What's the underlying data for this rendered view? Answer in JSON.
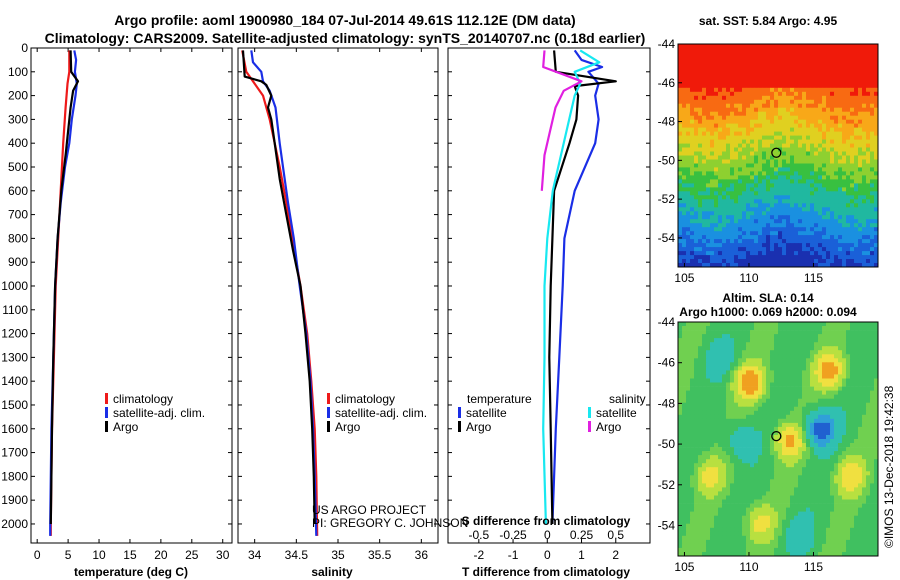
{
  "header": {
    "title_line1": "Argo profile: aoml 1900980_184 07-Jul-2014 49.61S 112.12E (DM data)",
    "title_line2": "Climatology: CARS2009. Satellite-adjusted climatology: synTS_20140707.nc (0.18d earlier)"
  },
  "colors": {
    "climatology": "#ee1a1a",
    "satellite": "#1a2ee6",
    "argo": "#000000",
    "argo_salinity": "#e020e0",
    "satellite_salinity": "#18e8f0"
  },
  "credits": {
    "project": "US ARGO PROJECT",
    "pi": "PI: GREGORY C. JOHNSON",
    "stamp": "©IMOS 13-Dec-2018 19:42:38"
  },
  "chart_data": [
    {
      "type": "line",
      "id": "temperature",
      "xlabel": "temperature (deg C)",
      "ylabel": "",
      "xlim": [
        -1,
        31.5
      ],
      "ylim": [
        2080,
        0
      ],
      "xticks": [
        0,
        5,
        10,
        15,
        20,
        25,
        30
      ],
      "yticks": [
        0,
        100,
        200,
        300,
        400,
        500,
        600,
        700,
        800,
        900,
        1000,
        1100,
        1200,
        1300,
        1400,
        1500,
        1600,
        1700,
        1800,
        1900,
        2000
      ],
      "legend": [
        "climatology",
        "satellite-adj. clim.",
        "Argo"
      ],
      "series": [
        {
          "name": "climatology",
          "color": "#ee1a1a",
          "points": [
            [
              5.2,
              10
            ],
            [
              5.2,
              100
            ],
            [
              4.9,
              150
            ],
            [
              4.6,
              250
            ],
            [
              4.2,
              400
            ],
            [
              3.8,
              600
            ],
            [
              3.4,
              800
            ],
            [
              3.0,
              1000
            ],
            [
              2.7,
              1300
            ],
            [
              2.4,
              1600
            ],
            [
              2.2,
              2000
            ],
            [
              2.2,
              2050
            ]
          ]
        },
        {
          "name": "satellite-adj. clim.",
          "color": "#1a2ee6",
          "points": [
            [
              6.0,
              10
            ],
            [
              6.3,
              50
            ],
            [
              6.1,
              100
            ],
            [
              6.4,
              150
            ],
            [
              6.2,
              200
            ],
            [
              5.6,
              300
            ],
            [
              5.2,
              400
            ],
            [
              4.5,
              500
            ],
            [
              3.8,
              650
            ],
            [
              3.3,
              800
            ],
            [
              2.9,
              1000
            ],
            [
              2.6,
              1300
            ],
            [
              2.3,
              1600
            ],
            [
              2.1,
              2000
            ],
            [
              2.1,
              2050
            ]
          ]
        },
        {
          "name": "Argo",
          "color": "#000000",
          "points": [
            [
              5.4,
              10
            ],
            [
              5.5,
              100
            ],
            [
              6.6,
              140
            ],
            [
              5.8,
              180
            ],
            [
              5.4,
              250
            ],
            [
              5.0,
              350
            ],
            [
              4.6,
              450
            ],
            [
              3.9,
              600
            ],
            [
              3.3,
              800
            ],
            [
              2.9,
              1000
            ],
            [
              2.6,
              1300
            ],
            [
              2.4,
              1600
            ],
            [
              2.2,
              2000
            ]
          ]
        }
      ]
    },
    {
      "type": "line",
      "id": "salinity",
      "xlabel": "salinity",
      "ylabel": "",
      "xlim": [
        33.8,
        36.2
      ],
      "ylim": [
        2080,
        0
      ],
      "xticks": [
        34,
        34.5,
        35,
        35.5,
        36
      ],
      "yticks": [
        0,
        100,
        200,
        300,
        400,
        500,
        600,
        700,
        800,
        900,
        1000,
        1100,
        1200,
        1300,
        1400,
        1500,
        1600,
        1700,
        1800,
        1900,
        2000
      ],
      "legend": [
        "climatology",
        "satellite-adj. clim.",
        "Argo"
      ],
      "series": [
        {
          "name": "climatology",
          "color": "#ee1a1a",
          "points": [
            [
              33.85,
              10
            ],
            [
              33.9,
              100
            ],
            [
              34.0,
              150
            ],
            [
              34.1,
              200
            ],
            [
              34.18,
              300
            ],
            [
              34.24,
              400
            ],
            [
              34.3,
              500
            ],
            [
              34.38,
              650
            ],
            [
              34.45,
              800
            ],
            [
              34.55,
              1000
            ],
            [
              34.63,
              1200
            ],
            [
              34.68,
              1400
            ],
            [
              34.72,
              1600
            ],
            [
              34.74,
              1800
            ],
            [
              34.75,
              2050
            ]
          ]
        },
        {
          "name": "satellite-adj. clim.",
          "color": "#1a2ee6",
          "points": [
            [
              33.96,
              10
            ],
            [
              33.98,
              60
            ],
            [
              34.08,
              100
            ],
            [
              34.1,
              140
            ],
            [
              34.18,
              180
            ],
            [
              34.25,
              250
            ],
            [
              34.3,
              400
            ],
            [
              34.34,
              500
            ],
            [
              34.4,
              650
            ],
            [
              34.47,
              800
            ],
            [
              34.54,
              1000
            ],
            [
              34.62,
              1200
            ],
            [
              34.67,
              1400
            ],
            [
              34.7,
              1600
            ],
            [
              34.72,
              1800
            ],
            [
              34.74,
              2050
            ]
          ]
        },
        {
          "name": "Argo",
          "color": "#000000",
          "points": [
            [
              33.86,
              10
            ],
            [
              33.88,
              120
            ],
            [
              34.08,
              140
            ],
            [
              34.14,
              155
            ],
            [
              34.2,
              200
            ],
            [
              34.16,
              250
            ],
            [
              34.2,
              300
            ],
            [
              34.24,
              400
            ],
            [
              34.3,
              550
            ],
            [
              34.38,
              700
            ],
            [
              34.46,
              850
            ],
            [
              34.55,
              1000
            ],
            [
              34.61,
              1200
            ],
            [
              34.66,
              1400
            ],
            [
              34.69,
              1600
            ],
            [
              34.71,
              1800
            ],
            [
              34.72,
              2000
            ]
          ]
        }
      ]
    },
    {
      "type": "line",
      "id": "difference",
      "xlabel": "T difference from climatology",
      "xlabel_top": "S difference from climatology",
      "xlim": [
        -2.9,
        3.0
      ],
      "ylim": [
        2080,
        0
      ],
      "xticks": [
        -2,
        -1,
        0,
        1,
        2
      ],
      "sticks": [
        "-0.5",
        "-0.25",
        "0",
        "0.25",
        "0.5"
      ],
      "yticks": [
        0,
        100,
        200,
        300,
        400,
        500,
        600,
        700,
        800,
        900,
        1000,
        1100,
        1200,
        1300,
        1400,
        1500,
        1600,
        1700,
        1800,
        1900,
        2000
      ],
      "legend_temperature_title": "temperature",
      "legend_salinity_title": "salinity",
      "legend": [
        "satellite",
        "Argo",
        "satellite",
        "Argo"
      ],
      "series": [
        {
          "name": "temperature satellite",
          "color": "#1a2ee6",
          "points": [
            [
              0.8,
              10
            ],
            [
              1.0,
              50
            ],
            [
              1.6,
              80
            ],
            [
              1.2,
              100
            ],
            [
              1.5,
              150
            ],
            [
              1.4,
              200
            ],
            [
              1.5,
              300
            ],
            [
              1.4,
              400
            ],
            [
              0.8,
              600
            ],
            [
              0.5,
              800
            ],
            [
              0.45,
              1000
            ],
            [
              0.35,
              1300
            ],
            [
              0.25,
              1600
            ],
            [
              0.15,
              2000
            ]
          ]
        },
        {
          "name": "temperature Argo",
          "color": "#000000",
          "points": [
            [
              0.2,
              10
            ],
            [
              0.25,
              100
            ],
            [
              2.0,
              140
            ],
            [
              0.8,
              160
            ],
            [
              0.9,
              200
            ],
            [
              0.85,
              300
            ],
            [
              0.65,
              400
            ],
            [
              0.2,
              600
            ],
            [
              0.15,
              800
            ],
            [
              0.1,
              1000
            ],
            [
              0.06,
              1300
            ],
            [
              0.1,
              1600
            ],
            [
              0.15,
              2000
            ]
          ]
        },
        {
          "name": "salinity satellite",
          "color": "#18e8f0",
          "points": [
            [
              0.24,
              10
            ],
            [
              0.38,
              60
            ],
            [
              0.2,
              100
            ],
            [
              0.24,
              150
            ],
            [
              0.2,
              200
            ],
            [
              0.16,
              300
            ],
            [
              0.12,
              400
            ],
            [
              0.04,
              600
            ],
            [
              0.0,
              800
            ],
            [
              -0.02,
              1000
            ],
            [
              -0.02,
              1300
            ],
            [
              -0.03,
              1600
            ],
            [
              -0.01,
              2000
            ]
          ]
        },
        {
          "name": "salinity Argo",
          "color": "#e020e0",
          "points": [
            [
              -0.02,
              10
            ],
            [
              -0.03,
              80
            ],
            [
              0.25,
              140
            ],
            [
              0.12,
              180
            ],
            [
              0.06,
              250
            ],
            [
              0.02,
              350
            ],
            [
              -0.02,
              450
            ],
            [
              -0.04,
              600
            ]
          ]
        }
      ]
    },
    {
      "type": "heatmap",
      "id": "sst_map",
      "title": "sat. SST: 5.84 Argo: 4.95",
      "xlim": [
        104.5,
        120
      ],
      "ylim": [
        -55.5,
        -44
      ],
      "xticks": [
        105,
        110,
        115
      ],
      "yticks": [
        -44,
        -46,
        -48,
        -50,
        -52,
        -54
      ],
      "marker": {
        "lon": 112.12,
        "lat": -49.61
      }
    },
    {
      "type": "heatmap",
      "id": "sla_map",
      "title": "Altim. SLA: 0.14",
      "subtitle": "Argo h1000: 0.069 h2000: 0.094",
      "xlim": [
        104.5,
        120
      ],
      "ylim": [
        -55.5,
        -44
      ],
      "xticks": [
        105,
        110,
        115
      ],
      "yticks": [
        -44,
        -46,
        -48,
        -50,
        -52,
        -54
      ],
      "marker": {
        "lon": 112.12,
        "lat": -49.61
      }
    }
  ]
}
